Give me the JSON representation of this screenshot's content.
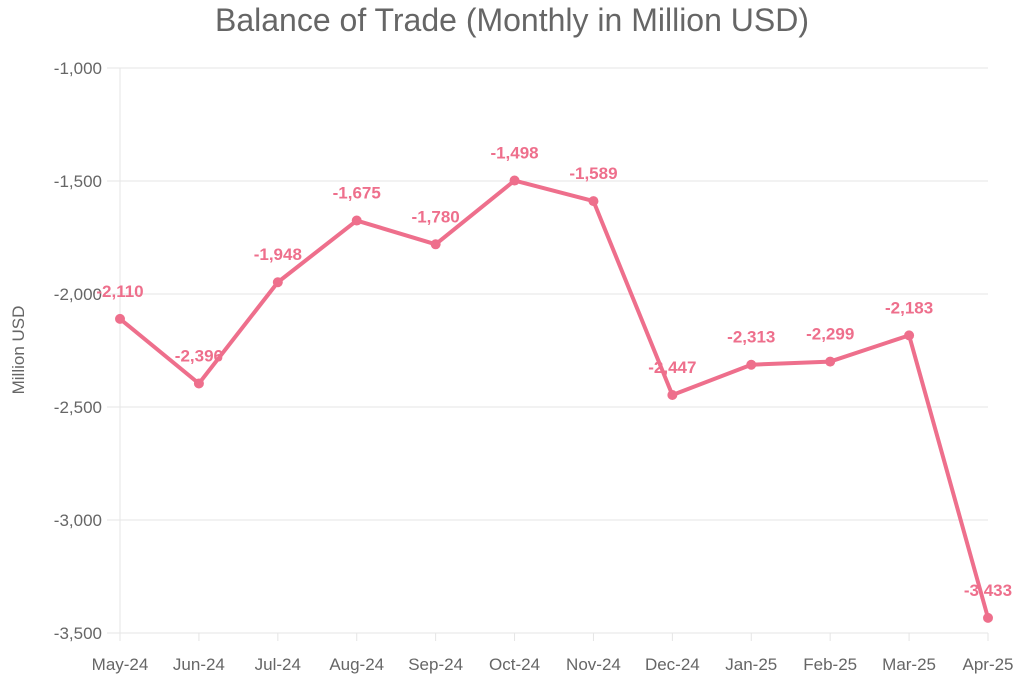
{
  "chart_data": {
    "type": "line",
    "title": "Balance of Trade (Monthly in Million USD)",
    "xlabel": "",
    "ylabel": "Million USD",
    "categories": [
      "May-24",
      "Jun-24",
      "Jul-24",
      "Aug-24",
      "Sep-24",
      "Oct-24",
      "Nov-24",
      "Dec-24",
      "Jan-25",
      "Feb-25",
      "Mar-25",
      "Apr-25"
    ],
    "series": [
      {
        "values": [
          -2110,
          -2396,
          -1948,
          -1675,
          -1780,
          -1498,
          -1589,
          -2447,
          -2313,
          -2299,
          -2183,
          -3433
        ],
        "labels": [
          "-2,110",
          "-2,396",
          "-1,948",
          "-1,675",
          "-1,780",
          "-1,498",
          "-1,589",
          "-2,447",
          "-2,313",
          "-2,299",
          "-2,183",
          "-3,433"
        ],
        "color": "#ee6f8c"
      }
    ],
    "ylim": [
      -3500,
      -1000
    ],
    "yticks": [
      -1000,
      -1500,
      -2000,
      -2500,
      -3000,
      -3500
    ],
    "ytick_labels": [
      "-1,000",
      "-1,500",
      "-2,000",
      "-2,500",
      "-3,000",
      "-3,500"
    ],
    "grid": true,
    "legend": "none"
  },
  "colors": {
    "line": "#ee6f8c",
    "grid": "#e5e5e5",
    "text": "#666666"
  }
}
